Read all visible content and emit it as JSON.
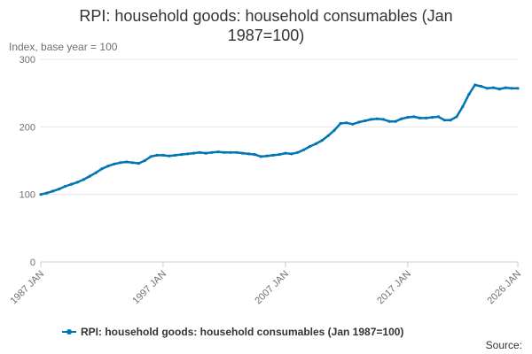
{
  "chart_data": {
    "type": "line",
    "title_line1": "RPI: household goods: household consumables (Jan",
    "title_line2": "1987=100)",
    "ylabel": "Index, base year = 100",
    "ylim": [
      0,
      300
    ],
    "y_ticks": [
      "0",
      "100",
      "200",
      "300"
    ],
    "x_tick_labels": [
      "1987 JAN",
      "1997 JAN",
      "2007 JAN",
      "2017 JAN",
      "2026 JAN"
    ],
    "x_tick_years": [
      1987,
      1997,
      2007,
      2017,
      2026
    ],
    "xlim": [
      1987,
      2026
    ],
    "grid": true,
    "legend_position": "bottom",
    "series": [
      {
        "name": "RPI: household goods: household consumables (Jan 1987=100)",
        "color": "#0075b3",
        "x": [
          1987,
          1987.5,
          1988,
          1988.5,
          1989,
          1989.5,
          1990,
          1990.5,
          1991,
          1991.5,
          1992,
          1992.5,
          1993,
          1993.5,
          1994,
          1994.5,
          1995,
          1995.5,
          1996,
          1996.5,
          1997,
          1997.5,
          1998,
          1998.5,
          1999,
          1999.5,
          2000,
          2000.5,
          2001,
          2001.5,
          2002,
          2002.5,
          2003,
          2003.5,
          2004,
          2004.5,
          2005,
          2005.5,
          2006,
          2006.5,
          2007,
          2007.5,
          2008,
          2008.5,
          2009,
          2009.5,
          2010,
          2010.5,
          2011,
          2011.5,
          2012,
          2012.5,
          2013,
          2013.5,
          2014,
          2014.5,
          2015,
          2015.5,
          2016,
          2016.5,
          2017,
          2017.5,
          2018,
          2018.5,
          2019,
          2019.5,
          2020,
          2020.5,
          2021,
          2021.5,
          2022,
          2022.5,
          2023,
          2023.5,
          2024,
          2024.5,
          2025,
          2025.5,
          2026
        ],
        "values": [
          100,
          102,
          105,
          108,
          112,
          115,
          118,
          122,
          127,
          132,
          138,
          142,
          145,
          147,
          148,
          147,
          146,
          150,
          156,
          158,
          158,
          157,
          158,
          159,
          160,
          161,
          162,
          161,
          162,
          163,
          162,
          162,
          162,
          161,
          160,
          159,
          156,
          157,
          158,
          159,
          161,
          160,
          162,
          166,
          171,
          175,
          180,
          187,
          195,
          205,
          206,
          204,
          207,
          209,
          211,
          212,
          211,
          208,
          208,
          212,
          214,
          215,
          213,
          213,
          214,
          215,
          210,
          210,
          215,
          230,
          248,
          262,
          260,
          257,
          258,
          256,
          258,
          257,
          257
        ]
      }
    ]
  },
  "footer": {
    "source_label": "Source:"
  }
}
